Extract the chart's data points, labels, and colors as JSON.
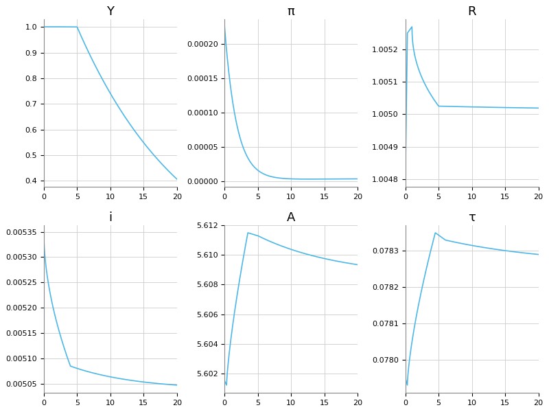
{
  "titles": [
    "Y",
    "π",
    "R",
    "i",
    "A",
    "τ"
  ],
  "line_color": "#4db8e8",
  "background_color": "#ffffff",
  "grid_color": "#cccccc",
  "xticks": [
    0,
    5,
    10,
    15,
    20
  ]
}
